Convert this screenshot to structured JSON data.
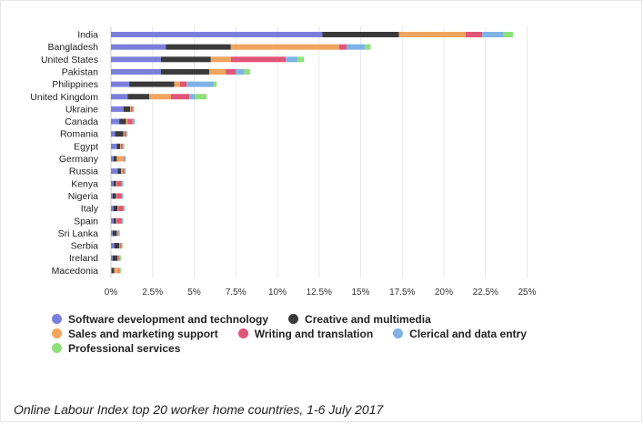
{
  "caption": "Online Labour Index top 20 worker home countries, 1-6 July 2017",
  "chart_data": {
    "type": "bar",
    "orientation": "horizontal",
    "stacked": true,
    "title": "",
    "xlabel": "",
    "ylabel": "",
    "xlim": [
      0,
      25
    ],
    "x_ticks": [
      "0%",
      "2.5%",
      "5%",
      "7.5%",
      "10%",
      "12.5%",
      "15%",
      "17.5%",
      "20%",
      "22.5%",
      "25%"
    ],
    "grid": "vertical",
    "legend_position": "bottom",
    "categories": [
      "India",
      "Bangladesh",
      "United States",
      "Pakistan",
      "Philippines",
      "United Kingdom",
      "Ukraine",
      "Canada",
      "Romania",
      "Egypt",
      "Germany",
      "Russia",
      "Kenya",
      "Nigeria",
      "Italy",
      "Spain",
      "Sri Lanka",
      "Serbia",
      "Ireland",
      "Macedonia"
    ],
    "series": [
      {
        "name": "Software development and technology",
        "color": "#7b7fdb",
        "values": [
          12.7,
          3.3,
          3.0,
          3.0,
          1.1,
          1.0,
          0.75,
          0.5,
          0.25,
          0.35,
          0.15,
          0.4,
          0.15,
          0.1,
          0.15,
          0.15,
          0.1,
          0.2,
          0.1,
          0.05
        ]
      },
      {
        "name": "Creative and multimedia",
        "color": "#3a3a3a",
        "values": [
          4.6,
          3.9,
          3.0,
          2.9,
          2.7,
          1.3,
          0.4,
          0.4,
          0.5,
          0.2,
          0.2,
          0.2,
          0.15,
          0.2,
          0.25,
          0.15,
          0.25,
          0.3,
          0.3,
          0.15
        ]
      },
      {
        "name": "Sales and marketing support",
        "color": "#f0a45d",
        "values": [
          4.0,
          6.5,
          1.2,
          1.0,
          0.35,
          1.3,
          0.05,
          0.1,
          0.05,
          0.05,
          0.4,
          0.1,
          0.05,
          0.05,
          0.05,
          0.05,
          0.05,
          0.05,
          0.05,
          0.25
        ]
      },
      {
        "name": "Writing and translation",
        "color": "#e05578",
        "values": [
          1.0,
          0.45,
          3.3,
          0.6,
          0.4,
          1.1,
          0.1,
          0.3,
          0.1,
          0.1,
          0.05,
          0.1,
          0.3,
          0.3,
          0.3,
          0.3,
          0.05,
          0.05,
          0.05,
          0.05
        ]
      },
      {
        "name": "Clerical and data entry",
        "color": "#7fb3e5",
        "values": [
          1.3,
          1.1,
          0.7,
          0.5,
          1.6,
          0.35,
          0.05,
          0.1,
          0.05,
          0.05,
          0.05,
          0.05,
          0.05,
          0.05,
          0.05,
          0.05,
          0.05,
          0.05,
          0.05,
          0.05
        ]
      },
      {
        "name": "Professional services",
        "color": "#8ee07a",
        "values": [
          0.55,
          0.35,
          0.4,
          0.35,
          0.2,
          0.7,
          0.05,
          0.05,
          0.05,
          0.05,
          0.05,
          0.05,
          0.05,
          0.05,
          0.05,
          0.05,
          0.05,
          0.05,
          0.05,
          0.05
        ]
      }
    ]
  }
}
